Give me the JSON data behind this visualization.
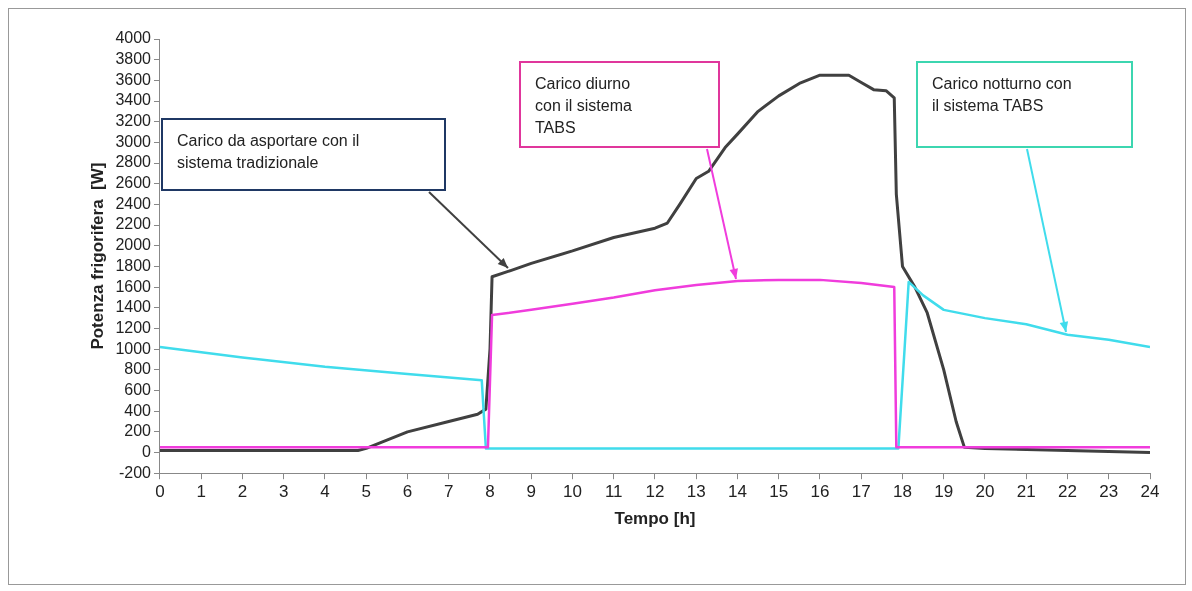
{
  "chart_data": {
    "type": "line",
    "xlabel": "Tempo [h]",
    "ylabel": "Potenza frigorifera  [W]",
    "xlim": [
      0,
      24
    ],
    "xticks": [
      0,
      1,
      2,
      3,
      4,
      5,
      6,
      7,
      8,
      9,
      10,
      11,
      12,
      13,
      14,
      15,
      16,
      17,
      18,
      19,
      20,
      21,
      22,
      23,
      24
    ],
    "ylim": [
      -200,
      4000
    ],
    "yticks": [
      -200,
      0,
      200,
      400,
      600,
      800,
      1000,
      1200,
      1400,
      1600,
      1800,
      2000,
      2200,
      2400,
      2600,
      2800,
      3000,
      3200,
      3400,
      3600,
      3800,
      4000
    ],
    "grid": false,
    "legend": false,
    "marker": "none",
    "line_style": "solid",
    "series": [
      {
        "color": "#f03cdc",
        "x": [
          0,
          7.95,
          8.05,
          9,
          10,
          11,
          12,
          13,
          14,
          15,
          16,
          17,
          17.8,
          17.85,
          24
        ],
        "values": [
          50,
          50,
          1330,
          1380,
          1440,
          1500,
          1570,
          1620,
          1660,
          1670,
          1670,
          1640,
          1600,
          50,
          50
        ]
      },
      {
        "color": "#40dcec",
        "x": [
          0,
          2,
          4,
          6,
          7.8,
          7.9,
          17.9,
          18.05,
          18.15,
          18.5,
          19,
          20,
          21,
          22,
          23,
          24
        ],
        "values": [
          1020,
          920,
          830,
          760,
          700,
          40,
          40,
          1000,
          1650,
          1520,
          1380,
          1300,
          1240,
          1140,
          1090,
          1020
        ]
      },
      {
        "color": "#404040",
        "x": [
          0,
          4.8,
          5,
          5.5,
          6,
          7,
          7.7,
          7.9,
          8,
          8.05,
          8.5,
          9,
          10,
          11,
          12,
          12.3,
          12.6,
          13,
          13.3,
          13.7,
          14,
          14.5,
          15,
          15.5,
          16,
          16.7,
          17,
          17.3,
          17.6,
          17.8,
          17.85,
          18,
          18.3,
          18.6,
          19,
          19.3,
          19.5,
          20,
          22,
          24
        ],
        "values": [
          20,
          20,
          40,
          120,
          200,
          300,
          370,
          420,
          1000,
          1700,
          1760,
          1830,
          1950,
          2080,
          2170,
          2220,
          2400,
          2650,
          2720,
          2950,
          3080,
          3300,
          3450,
          3570,
          3650,
          3650,
          3580,
          3510,
          3500,
          3430,
          2500,
          1800,
          1600,
          1350,
          800,
          300,
          50,
          40,
          20,
          0
        ]
      }
    ],
    "annotations": [
      "Carico da asportare con il sistema tradizionale",
      "Carico diurno con il sistema TABS",
      "Carico notturno con il sistema TABS"
    ]
  }
}
